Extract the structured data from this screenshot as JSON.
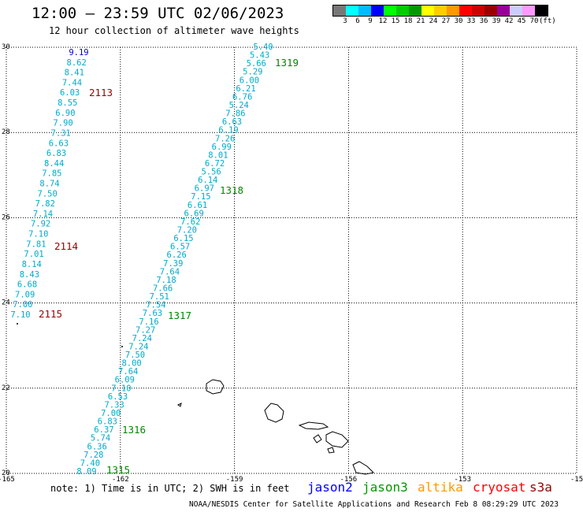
{
  "header": {
    "title": "12:00 – 23:59 UTC 02/06/2023",
    "subtitle": "12 hour collection of altimeter wave heights"
  },
  "colorbar": {
    "colors": [
      "#777777",
      "#00ffff",
      "#00bbff",
      "#0000ff",
      "#00ff00",
      "#00cc00",
      "#009900",
      "#ffff00",
      "#ffcc00",
      "#ff9900",
      "#ff0000",
      "#cc0000",
      "#990000",
      "#990099",
      "#ccccff",
      "#ff99ff",
      "#000000"
    ],
    "labels": [
      "3",
      "6",
      "9",
      "12",
      "15",
      "18",
      "21",
      "24",
      "27",
      "30",
      "33",
      "36",
      "39",
      "42",
      "45",
      "70",
      "(ft)"
    ]
  },
  "map": {
    "lon_min": -165,
    "lon_max": -150,
    "lat_min": 20,
    "lat_max": 30,
    "lon_labels": [
      "-165",
      "-162",
      "-159",
      "-156",
      "-153",
      "-15"
    ],
    "lat_labels": [
      "30",
      "28",
      "26",
      "24",
      "22",
      "20"
    ],
    "grid_lons": [
      -162,
      -159,
      -156,
      -153
    ],
    "grid_lats": [
      28,
      26,
      24,
      22
    ]
  },
  "tracks": [
    {
      "color": "#00aacc",
      "values": [
        "9.19",
        "8.62",
        "8.41",
        "7.44",
        "6.03",
        "8.55",
        "6.90",
        "7.90",
        "7.31",
        "6.63",
        "6.83",
        "8.44",
        "7.85",
        "8.74",
        "7.50",
        "7.82",
        "7.14",
        "7.92",
        "7.10",
        "7.81",
        "7.01",
        "8.14",
        "8.43",
        "6.68",
        "7.09",
        "7.00",
        "7.10"
      ],
      "first_color": "#0000cc"
    },
    {
      "color": "#00aacc",
      "values": [
        "5.40",
        "5.43",
        "5.66",
        "5.29",
        "6.00",
        "6.21",
        "6.76",
        "5.24",
        "7.86",
        "6.63",
        "6.19",
        "7.26",
        "6.99",
        "8.01",
        "6.72",
        "5.56",
        "6.14",
        "6.97",
        "7.15",
        "6.61",
        "6.69",
        "7.62",
        "7.20",
        "6.15",
        "6.57",
        "6.26",
        "7.39",
        "7.64",
        "7.18",
        "7.66",
        "7.51",
        "7.54",
        "7.63",
        "7.16",
        "7.27",
        "7.24",
        "7.24",
        "7.50",
        "8.00",
        "7.64",
        "6.09",
        "7.10",
        "6.53",
        "7.33",
        "7.00",
        "6.83",
        "6.37",
        "5.74",
        "6.36",
        "7.28",
        "7.40",
        "8.09"
      ]
    }
  ],
  "pass_labels": [
    {
      "text": "2113",
      "color": "#990000"
    },
    {
      "text": "2114",
      "color": "#990000"
    },
    {
      "text": "2115",
      "color": "#990000"
    },
    {
      "text": "1319",
      "color": "#008800"
    },
    {
      "text": "1318",
      "color": "#008800"
    },
    {
      "text": "1317",
      "color": "#008800"
    },
    {
      "text": "1316",
      "color": "#008800"
    },
    {
      "text": "1315",
      "color": "#008800"
    }
  ],
  "footer": {
    "note": "note:  1) Time is in UTC; 2) SWH is in feet",
    "credit": "NOAA/NESDIS Center for Satellite Applications and Research    Feb  8 08:29:29 UTC 2023",
    "satellites": [
      {
        "name": "jason2",
        "color": "#0000ff"
      },
      {
        "name": "jason3",
        "color": "#009900"
      },
      {
        "name": "altika",
        "color": "#ff9900"
      },
      {
        "name": "cryosat",
        "color": "#ff0000"
      },
      {
        "name": "s3a",
        "color": "#990000"
      }
    ]
  }
}
